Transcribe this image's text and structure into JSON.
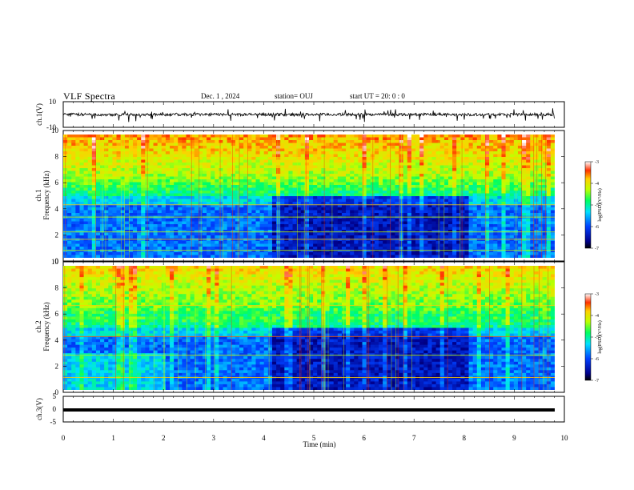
{
  "header": {
    "title": "VLF Spectra",
    "date": "Dec. 1  , 2024",
    "station": "station= OUJ",
    "start": "start  UT  =   20: 0   : 0"
  },
  "chart_data": [
    {
      "type": "line",
      "panel": "ch1-waveform",
      "ylabel": "ch.1(V)",
      "ylim": [
        -10,
        10
      ],
      "yticks": [
        "10",
        "-10"
      ],
      "xlim": [
        0,
        10
      ],
      "baseline": 0,
      "note_values": "noisy waveform near 0 V with spikes to about -5 V"
    },
    {
      "type": "heatmap",
      "panel": "ch1-spectrogram",
      "ylabel": "ch.1\nFrequency  (kHz)",
      "ylim": [
        0,
        10
      ],
      "yticks": [
        "0",
        "2",
        "4",
        "6",
        "8",
        "10"
      ],
      "xlim": [
        0,
        9.8
      ],
      "colorbar": {
        "ticks": [
          "-3",
          "-4",
          "-5",
          "-6",
          "-7"
        ],
        "label": "log(PSD)(V²/Hz)",
        "range": [
          -7,
          -3
        ]
      }
    },
    {
      "type": "heatmap",
      "panel": "ch2-spectrogram",
      "ylabel": "ch.2\nFrequency  (kHz)",
      "ylim": [
        0,
        10
      ],
      "yticks": [
        "0",
        "2",
        "4",
        "6",
        "8",
        "10"
      ],
      "xlim": [
        0,
        9.8
      ],
      "colorbar": {
        "ticks": [
          "-3",
          "-4",
          "-5",
          "-6",
          "-7"
        ],
        "label": "log(PSD)(V²/Hz)",
        "range": [
          -7,
          -3
        ]
      }
    },
    {
      "type": "line",
      "panel": "ch3-waveform",
      "ylabel": "ch.3(V)",
      "ylim": [
        -5,
        5
      ],
      "yticks": [
        "5",
        "0",
        "-5"
      ],
      "xlim": [
        0,
        10
      ],
      "baseline": 0
    }
  ],
  "xaxis": {
    "label": "Time  (min)",
    "ticks": [
      "0",
      "1",
      "2",
      "3",
      "4",
      "5",
      "6",
      "7",
      "8",
      "9",
      "10"
    ],
    "range": [
      0,
      10
    ]
  },
  "colors": {
    "low": "#00008b",
    "mid": "#00ff80",
    "high": "#ff0000"
  }
}
